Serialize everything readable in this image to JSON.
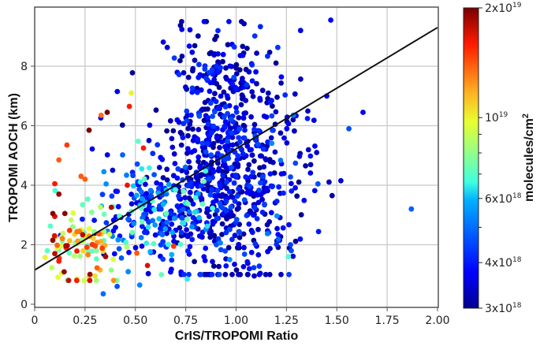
{
  "chart_data": {
    "type": "scatter",
    "title": "",
    "xlabel": "CrIS/TROPOMI Ratio",
    "ylabel": "TROPOMI AOCH (km)",
    "xlim": [
      0,
      2.0
    ],
    "ylim": [
      -0.1,
      9.8
    ],
    "grid": true,
    "xticks": [
      "0",
      "0.25",
      "0.50",
      "0.75",
      "1.00",
      "1.25",
      "1.50",
      "1.75",
      "2.00"
    ],
    "xtick_values": [
      0,
      0.25,
      0.5,
      0.75,
      1.0,
      1.25,
      1.5,
      1.75,
      2.0
    ],
    "yticks": [
      "0",
      "2",
      "4",
      "6",
      "8"
    ],
    "ytick_values": [
      0,
      2,
      4,
      6,
      8
    ],
    "regression_line": {
      "x": [
        0,
        2.0
      ],
      "y": [
        1.15,
        9.3
      ],
      "color": "#111111"
    },
    "colorbar": {
      "label": "molecules/cm²",
      "scale": "log",
      "colormap": "jet",
      "range": [
        3e+18,
        2e+19
      ],
      "ticks": [
        {
          "value": 2e+19,
          "mant": "2x10",
          "exp": "19"
        },
        {
          "value": 1e+19,
          "mant": "10",
          "exp": "19"
        },
        {
          "value": 6e+18,
          "mant": "6x10",
          "exp": "18"
        },
        {
          "value": 4e+18,
          "mant": "4x10",
          "exp": "18"
        },
        {
          "value": 3e+18,
          "mant": "3x10",
          "exp": "18"
        }
      ],
      "minor_ticks": [
        9e+18,
        8e+18,
        7e+18,
        5e+18
      ]
    },
    "clusters": [
      {
        "name": "main-dense",
        "n": 620,
        "cx": 0.92,
        "cy": 4.3,
        "sx": 0.17,
        "sy": 1.7,
        "cmin": 3e+18,
        "cmax": 4.6e+18,
        "ymin": 1.0,
        "ymax": 9.5
      },
      {
        "name": "upper-mid",
        "n": 140,
        "cx": 0.93,
        "cy": 7.6,
        "sx": 0.13,
        "sy": 1.0,
        "cmin": 3e+18,
        "cmax": 4.4e+18,
        "ymin": 5.5,
        "ymax": 9.5
      },
      {
        "name": "mid-mixed",
        "n": 220,
        "cx": 0.6,
        "cy": 3.0,
        "sx": 0.15,
        "sy": 0.9,
        "cmin": 3.5e+18,
        "cmax": 7.5e+18,
        "ymin": 0.6,
        "ymax": 6.0
      },
      {
        "name": "low-ratio-high-column",
        "n": 95,
        "cx": 0.24,
        "cy": 2.0,
        "sx": 0.09,
        "sy": 0.7,
        "cmin": 7e+18,
        "cmax": 1.9e+19,
        "ymin": 0.8,
        "ymax": 4.5
      },
      {
        "name": "right-tail",
        "n": 60,
        "cx": 1.2,
        "cy": 4.0,
        "sx": 0.1,
        "sy": 1.6,
        "cmin": 3e+18,
        "cmax": 5.5e+18,
        "ymin": 1.5,
        "ymax": 8.5
      }
    ],
    "outliers": [
      {
        "x": 1.87,
        "y": 3.2,
        "c": 4.8e+18
      },
      {
        "x": 1.63,
        "y": 6.45,
        "c": 3.6e+18
      },
      {
        "x": 1.56,
        "y": 5.9,
        "c": 4.6e+18
      },
      {
        "x": 1.52,
        "y": 4.15,
        "c": 3.4e+18
      },
      {
        "x": 1.47,
        "y": 9.55,
        "c": 3.7e+18
      },
      {
        "x": 1.45,
        "y": 7.0,
        "c": 3.8e+18
      },
      {
        "x": 1.4,
        "y": 5.1,
        "c": 3.4e+18
      },
      {
        "x": 1.32,
        "y": 9.2,
        "c": 3.6e+18
      },
      {
        "x": 1.27,
        "y": 2.0,
        "c": 4.4e+18
      },
      {
        "x": 1.26,
        "y": 1.6,
        "c": 6.8e+18
      },
      {
        "x": 1.09,
        "y": 0.95,
        "c": 3.4e+18
      },
      {
        "x": 0.41,
        "y": 7.15,
        "c": 3.7e+18
      },
      {
        "x": 0.48,
        "y": 7.1,
        "c": 1e+19
      },
      {
        "x": 0.36,
        "y": 6.45,
        "c": 2e+19
      },
      {
        "x": 0.33,
        "y": 6.35,
        "c": 1.35e+19
      },
      {
        "x": 0.27,
        "y": 5.85,
        "c": 2e+19
      },
      {
        "x": 0.16,
        "y": 5.35,
        "c": 1.5e+19
      },
      {
        "x": 0.12,
        "y": 4.85,
        "c": 1.4e+19
      },
      {
        "x": 0.23,
        "y": 4.3,
        "c": 1.4e+19
      },
      {
        "x": 0.25,
        "y": 4.2,
        "c": 1.4e+19
      },
      {
        "x": 0.1,
        "y": 4.05,
        "c": 1.6e+19
      },
      {
        "x": 0.12,
        "y": 3.7,
        "c": 1.9e+19
      },
      {
        "x": 0.09,
        "y": 3.05,
        "c": 1.95e+19
      },
      {
        "x": 0.15,
        "y": 3.05,
        "c": 1.95e+19
      },
      {
        "x": 0.1,
        "y": 2.95,
        "c": 1.7e+19
      },
      {
        "x": 0.1,
        "y": 1.7,
        "c": 1.8e+19
      },
      {
        "x": 0.09,
        "y": 2.15,
        "c": 1.9e+19
      },
      {
        "x": 0.12,
        "y": 1.45,
        "c": 1.6e+19
      },
      {
        "x": 0.47,
        "y": 6.65,
        "c": 1.6e+19
      },
      {
        "x": 0.54,
        "y": 5.25,
        "c": 1.6e+19
      },
      {
        "x": 0.46,
        "y": 4.0,
        "c": 1.65e+19
      },
      {
        "x": 0.34,
        "y": 0.35,
        "c": 5e+18
      },
      {
        "x": 0.69,
        "y": 1.95,
        "c": 1.5e+19
      },
      {
        "x": 0.56,
        "y": 1.3,
        "c": 1.7e+19
      },
      {
        "x": 0.3,
        "y": 0.95,
        "c": 1.05e+19
      },
      {
        "x": 0.21,
        "y": 0.85,
        "c": 9.5e+18
      },
      {
        "x": 0.38,
        "y": 1.15,
        "c": 8e+18
      }
    ]
  },
  "axes": {
    "xlabel": "CrIS/TROPOMI Ratio",
    "ylabel": "TROPOMI AOCH (km)"
  },
  "colorbar": {
    "label": "molecules/cm",
    "label_sup": "2"
  }
}
